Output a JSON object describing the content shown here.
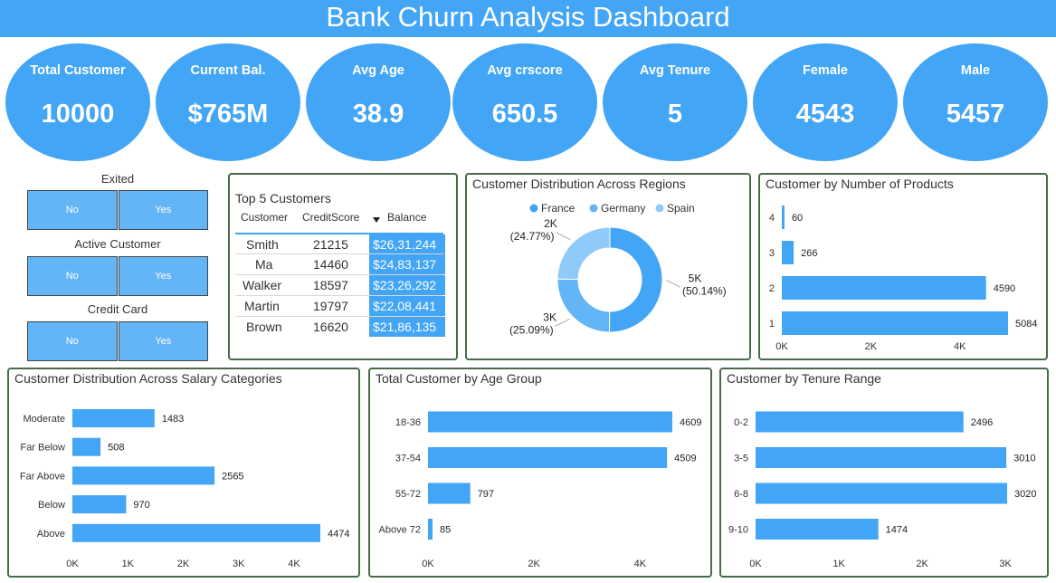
{
  "title": "Bank Churn Analysis Dashboard",
  "kpis": [
    {
      "label": "Total Customer",
      "value": "10000"
    },
    {
      "label": "Current Bal.",
      "value": "$765M"
    },
    {
      "label": "Avg Age",
      "value": "38.9"
    },
    {
      "label": "Avg crscore",
      "value": "650.5"
    },
    {
      "label": "Avg Tenure",
      "value": "5"
    },
    {
      "label": "Female",
      "value": "4543"
    },
    {
      "label": "Male",
      "value": "5457"
    }
  ],
  "slicers": [
    {
      "title": "Exited",
      "options": [
        "No",
        "Yes"
      ]
    },
    {
      "title": "Active Customer",
      "options": [
        "No",
        "Yes"
      ]
    },
    {
      "title": "Credit Card",
      "options": [
        "No",
        "Yes"
      ]
    }
  ],
  "top_customers": {
    "title": "Top 5 Customers",
    "columns": [
      "Customer",
      "CreditScore",
      "Balance"
    ],
    "rows": [
      [
        "Smith",
        "21215",
        "$26,31,244"
      ],
      [
        "Ma",
        "14460",
        "$24,83,137"
      ],
      [
        "Walker",
        "18597",
        "$23,26,292"
      ],
      [
        "Martin",
        "19797",
        "$22,08,441"
      ],
      [
        "Brown",
        "16620",
        "$21,86,135"
      ]
    ]
  },
  "colors": {
    "accent": "#42a5f5",
    "accent_light": "#64b5f6",
    "accent_lighter": "#90caf9",
    "border": "#4a6b4a"
  },
  "chart_data": [
    {
      "id": "regions",
      "type": "pie",
      "title": "Customer Distribution Across Regions",
      "legend_position": "top",
      "series": [
        {
          "name": "France",
          "value": 5014,
          "label": "5K",
          "percent": "(50.14%)"
        },
        {
          "name": "Germany",
          "value": 2509,
          "label": "3K",
          "percent": "(25.09%)"
        },
        {
          "name": "Spain",
          "value": 2477,
          "label": "2K",
          "percent": "(24.77%)"
        }
      ]
    },
    {
      "id": "products",
      "type": "bar",
      "orientation": "horizontal",
      "title": "Customer by Number of Products",
      "categories": [
        "4",
        "3",
        "2",
        "1"
      ],
      "values": [
        60,
        266,
        4590,
        5084
      ],
      "xlim": [
        0,
        5084
      ],
      "xticks": [
        "0K",
        "2K",
        "4K"
      ],
      "xtick_values": [
        0,
        2000,
        4000
      ]
    },
    {
      "id": "salary",
      "type": "bar",
      "orientation": "horizontal",
      "title": "Customer Distribution Across Salary Categories",
      "categories": [
        "Moderate",
        "Far Below",
        "Far Above",
        "Below",
        "Above"
      ],
      "values": [
        1483,
        508,
        2565,
        970,
        4474
      ],
      "xlim": [
        0,
        4474
      ],
      "xticks": [
        "0K",
        "1K",
        "2K",
        "3K",
        "4K"
      ],
      "xtick_values": [
        0,
        1000,
        2000,
        3000,
        4000
      ]
    },
    {
      "id": "age",
      "type": "bar",
      "orientation": "horizontal",
      "title": "Total Customer by Age Group",
      "categories": [
        "18-36",
        "37-54",
        "55-72",
        "Above 72"
      ],
      "values": [
        4609,
        4509,
        797,
        85
      ],
      "xlim": [
        0,
        4609
      ],
      "xticks": [
        "0K",
        "2K",
        "4K"
      ],
      "xtick_values": [
        0,
        2000,
        4000
      ]
    },
    {
      "id": "tenure",
      "type": "bar",
      "orientation": "horizontal",
      "title": "Customer by Tenure Range",
      "categories": [
        "0-2",
        "3-5",
        "6-8",
        "9-10"
      ],
      "values": [
        2496,
        3010,
        3020,
        1474
      ],
      "xlim": [
        0,
        3020
      ],
      "xticks": [
        "0K",
        "1K",
        "2K",
        "3K"
      ],
      "xtick_values": [
        0,
        1000,
        2000,
        3000
      ]
    }
  ]
}
